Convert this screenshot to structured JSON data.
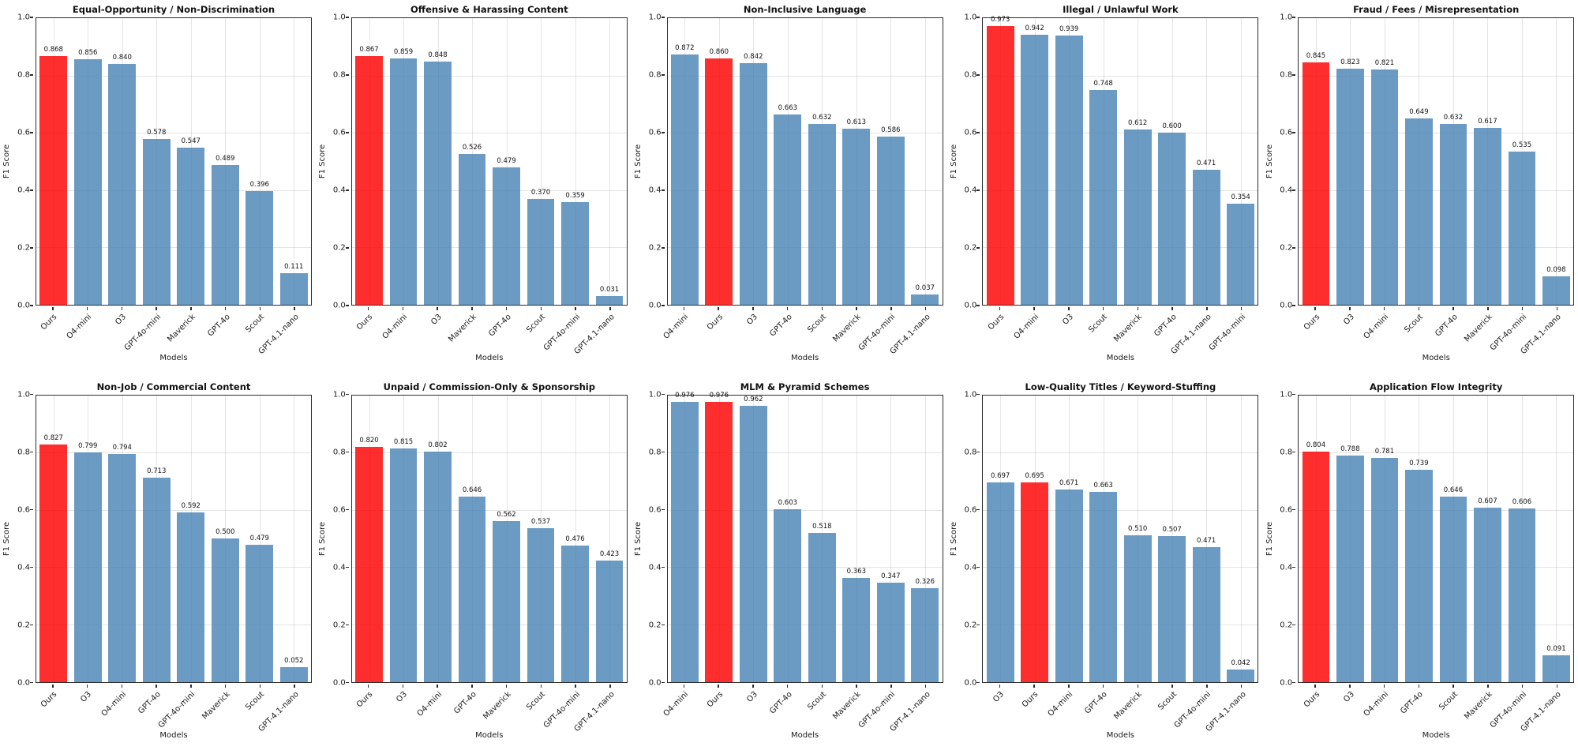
{
  "figure": {
    "background": "#ffffff",
    "layout": "2x5-grid",
    "axes": {
      "ylabel": "F1 Score",
      "xlabel": "Models",
      "ylim": [
        0.0,
        1.0
      ],
      "yticks": [
        0.0,
        0.2,
        0.4,
        0.6,
        0.8,
        1.0
      ],
      "grid": true,
      "legend": "none"
    },
    "colors": {
      "bar_default": "#4682b4",
      "bar_highlight": "#ff0000",
      "bar_default_rgba": "rgba(70,130,180,0.8)",
      "bar_highlight_rgba": "rgba(255,0,0,0.82)",
      "gridline": "#b2b2b2",
      "spine": "#2b2b2b"
    },
    "highlight_category": "Ours",
    "value_label_decimals": 3
  },
  "chart_data": [
    {
      "type": "bar",
      "title": "Equal-Opportunity / Non-Discrimination",
      "xlabel": "Models",
      "ylabel": "F1 Score",
      "categories": [
        "Ours",
        "O4-mini",
        "O3",
        "GPT-4o-mini",
        "Maverick",
        "GPT-4o",
        "Scout",
        "GPT-4.1-nano"
      ],
      "values": [
        0.868,
        0.856,
        0.84,
        0.578,
        0.547,
        0.489,
        0.396,
        0.111
      ]
    },
    {
      "type": "bar",
      "title": "Offensive & Harassing Content",
      "xlabel": "Models",
      "ylabel": "F1 Score",
      "categories": [
        "Ours",
        "O4-mini",
        "O3",
        "Maverick",
        "GPT-4o",
        "Scout",
        "GPT-4o-mini",
        "GPT-4.1-nano"
      ],
      "values": [
        0.867,
        0.859,
        0.848,
        0.526,
        0.479,
        0.37,
        0.359,
        0.031
      ]
    },
    {
      "type": "bar",
      "title": "Non-Inclusive Language",
      "xlabel": "Models",
      "ylabel": "F1 Score",
      "categories": [
        "O4-mini",
        "Ours",
        "O3",
        "GPT-4o",
        "Scout",
        "Maverick",
        "GPT-4o-mini",
        "GPT-4.1-nano"
      ],
      "values": [
        0.872,
        0.86,
        0.842,
        0.663,
        0.632,
        0.613,
        0.586,
        0.037
      ]
    },
    {
      "type": "bar",
      "title": "Illegal / Unlawful Work",
      "xlabel": "Models",
      "ylabel": "F1 Score",
      "categories": [
        "Ours",
        "O4-mini",
        "O3",
        "Scout",
        "Maverick",
        "GPT-4o",
        "GPT-4.1-nano",
        "GPT-4o-mini"
      ],
      "values": [
        0.973,
        0.942,
        0.939,
        0.748,
        0.612,
        0.6,
        0.471,
        0.354
      ]
    },
    {
      "type": "bar",
      "title": "Fraud / Fees / Misrepresentation",
      "xlabel": "Models",
      "ylabel": "F1 Score",
      "categories": [
        "Ours",
        "O3",
        "O4-mini",
        "Scout",
        "GPT-4o",
        "Maverick",
        "GPT-4o-mini",
        "GPT-4.1-nano"
      ],
      "values": [
        0.845,
        0.823,
        0.821,
        0.649,
        0.632,
        0.617,
        0.535,
        0.098
      ]
    },
    {
      "type": "bar",
      "title": "Non-Job / Commercial Content",
      "xlabel": "Models",
      "ylabel": "F1 Score",
      "categories": [
        "Ours",
        "O3",
        "O4-mini",
        "GPT-4o",
        "GPT-4o-mini",
        "Maverick",
        "Scout",
        "GPT-4.1-nano"
      ],
      "values": [
        0.827,
        0.799,
        0.794,
        0.713,
        0.592,
        0.5,
        0.479,
        0.052
      ]
    },
    {
      "type": "bar",
      "title": "Unpaid / Commission-Only & Sponsorship",
      "xlabel": "Models",
      "ylabel": "F1 Score",
      "categories": [
        "Ours",
        "O3",
        "O4-mini",
        "GPT-4o",
        "Maverick",
        "Scout",
        "GPT-4o-mini",
        "GPT-4.1-nano"
      ],
      "values": [
        0.82,
        0.815,
        0.802,
        0.646,
        0.562,
        0.537,
        0.476,
        0.423
      ]
    },
    {
      "type": "bar",
      "title": "MLM & Pyramid Schemes",
      "xlabel": "Models",
      "ylabel": "F1 Score",
      "categories": [
        "O4-mini",
        "Ours",
        "O3",
        "GPT-4o",
        "Scout",
        "Maverick",
        "GPT-4o-mini",
        "GPT-4.1-nano"
      ],
      "values": [
        0.976,
        0.976,
        0.962,
        0.603,
        0.518,
        0.363,
        0.347,
        0.326
      ]
    },
    {
      "type": "bar",
      "title": "Low-Quality Titles / Keyword-Stuffing",
      "xlabel": "Models",
      "ylabel": "F1 Score",
      "categories": [
        "O3",
        "Ours",
        "O4-mini",
        "GPT-4o",
        "Maverick",
        "Scout",
        "GPT-4o-mini",
        "GPT-4.1-nano"
      ],
      "values": [
        0.697,
        0.695,
        0.671,
        0.663,
        0.51,
        0.507,
        0.471,
        0.042
      ]
    },
    {
      "type": "bar",
      "title": "Application Flow Integrity",
      "xlabel": "Models",
      "ylabel": "F1 Score",
      "categories": [
        "Ours",
        "O3",
        "O4-mini",
        "GPT-4o",
        "Scout",
        "Maverick",
        "GPT-4o-mini",
        "GPT-4.1-nano"
      ],
      "values": [
        0.804,
        0.788,
        0.781,
        0.739,
        0.646,
        0.607,
        0.606,
        0.091
      ]
    }
  ]
}
